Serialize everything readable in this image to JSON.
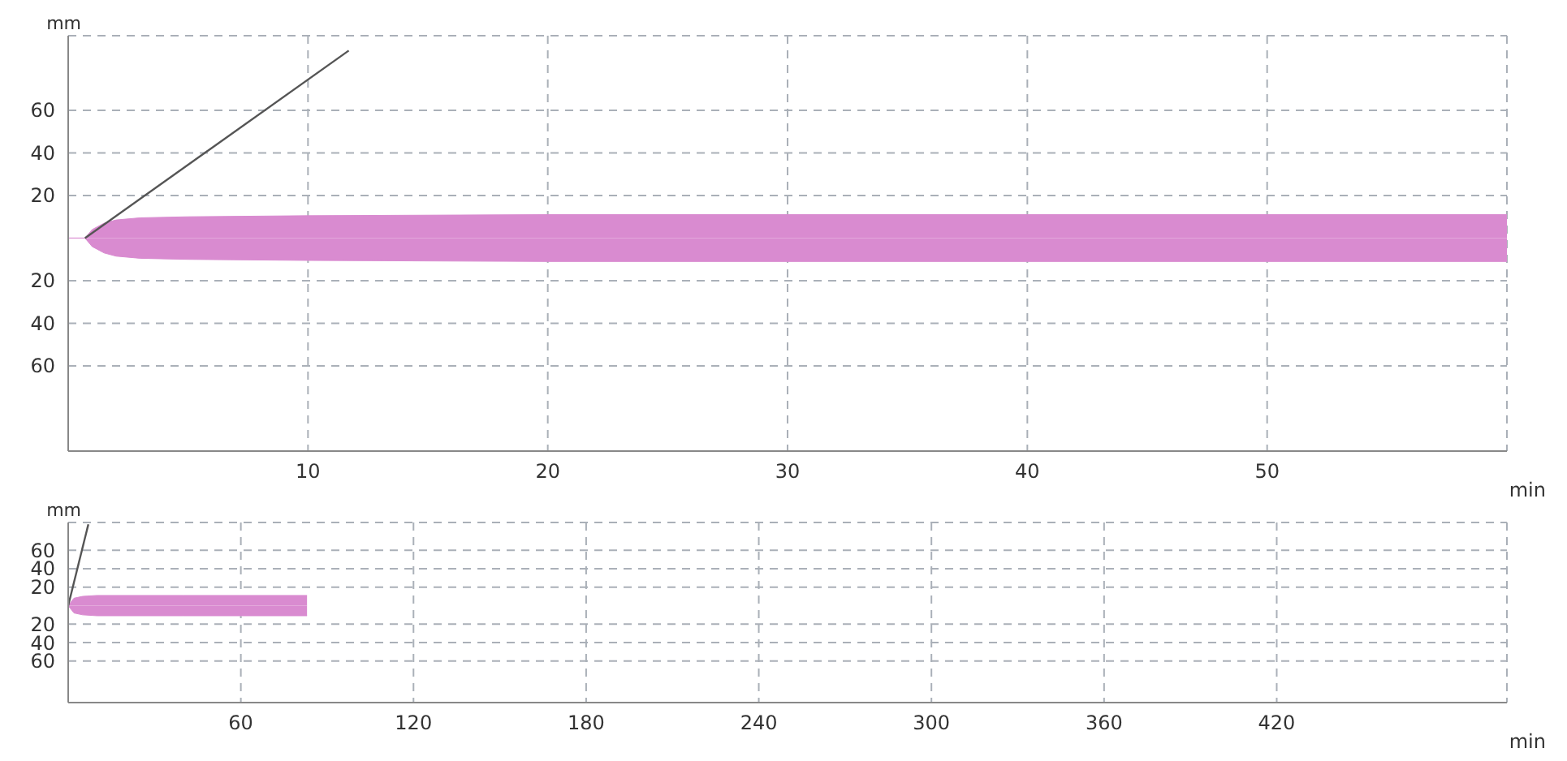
{
  "chart_data": [
    {
      "type": "area",
      "xlabel": "min",
      "ylabel": "mm",
      "xlim": [
        0,
        60
      ],
      "xticks": [
        10,
        20,
        30,
        40,
        50
      ],
      "ylim": [
        -100,
        95
      ],
      "yticks": [
        {
          "value": -60,
          "label": "60"
        },
        {
          "value": -40,
          "label": "40"
        },
        {
          "value": -20,
          "label": "20"
        },
        20,
        40,
        60
      ],
      "grid": true,
      "legend": false,
      "series": [
        {
          "color": "#d98bd0",
          "x": [
            0,
            0.7,
            1,
            1.5,
            2,
            3,
            5,
            10,
            20,
            30,
            40,
            50,
            60
          ],
          "values": [
            0,
            0,
            4,
            7,
            8.5,
            9.5,
            10,
            10.5,
            11,
            11,
            11,
            11,
            11
          ]
        },
        {
          "color": "#d98bd0",
          "x": [
            0,
            0.7,
            1,
            1.5,
            2,
            3,
            5,
            10,
            20,
            30,
            40,
            50,
            60
          ],
          "values": [
            0,
            0,
            -4,
            -7,
            -8.5,
            -9.5,
            -10,
            -10.5,
            -11,
            -11,
            -11,
            -11,
            -11
          ]
        },
        {
          "type": "line",
          "color": "#555555",
          "x": [
            0.7,
            11.7
          ],
          "values": [
            0,
            88
          ]
        }
      ]
    },
    {
      "type": "area",
      "xlabel": "min",
      "ylabel": "mm",
      "xlim": [
        0,
        500
      ],
      "xticks": [
        60,
        120,
        180,
        240,
        300,
        360,
        420
      ],
      "ylim": [
        -105,
        90
      ],
      "yticks": [
        {
          "value": -60,
          "label": "60"
        },
        {
          "value": -40,
          "label": "40"
        },
        {
          "value": -20,
          "label": "20"
        },
        20,
        40,
        60
      ],
      "grid": true,
      "legend": false,
      "series": [
        {
          "color": "#d98bd0",
          "x": [
            0,
            2,
            5,
            10,
            40,
            83
          ],
          "values": [
            0,
            8,
            10,
            11,
            11,
            11
          ]
        },
        {
          "color": "#d98bd0",
          "x": [
            0,
            2,
            5,
            10,
            40,
            83
          ],
          "values": [
            0,
            -8,
            -10,
            -11,
            -11,
            -11
          ]
        },
        {
          "type": "line",
          "color": "#555555",
          "x": [
            0,
            7
          ],
          "values": [
            0,
            88
          ]
        }
      ]
    }
  ]
}
